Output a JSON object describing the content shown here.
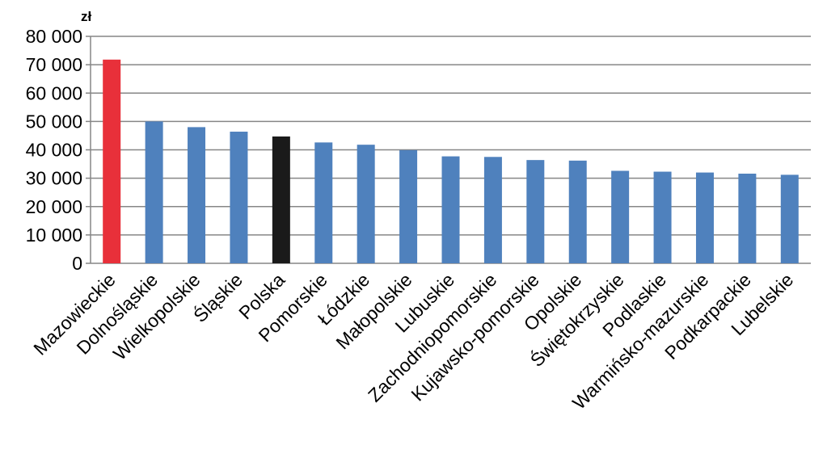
{
  "chart_data": {
    "type": "bar",
    "unit_label": "zł",
    "categories": [
      "Mazowieckie",
      "Dolnośląskie",
      "Wielkopolskie",
      "Śląskie",
      "Polska",
      "Pomorskie",
      "Łódzkie",
      "Małopolskie",
      "Lubuskie",
      "Zachodniopomorskie",
      "Kujawsko-pomorskie",
      "Opolskie",
      "Świętokrzyskie",
      "Podlaskie",
      "Warmińsko-mazurskie",
      "Podkarpackie",
      "Lubelskie"
    ],
    "values": [
      71800,
      50000,
      48000,
      46400,
      44700,
      42600,
      41800,
      39900,
      37700,
      37500,
      36400,
      36200,
      32600,
      32300,
      32000,
      31600,
      31200
    ],
    "bar_colors": [
      "#e8303a",
      "#4f81bd",
      "#4f81bd",
      "#4f81bd",
      "#1a1a1a",
      "#4f81bd",
      "#4f81bd",
      "#4f81bd",
      "#4f81bd",
      "#4f81bd",
      "#4f81bd",
      "#4f81bd",
      "#4f81bd",
      "#4f81bd",
      "#4f81bd",
      "#4f81bd",
      "#4f81bd"
    ],
    "ylim": [
      0,
      80000
    ],
    "yticks": [
      0,
      10000,
      20000,
      30000,
      40000,
      50000,
      60000,
      70000,
      80000
    ],
    "ytick_labels": [
      "0",
      "10 000",
      "20 000",
      "30 000",
      "40 000",
      "50 000",
      "60 000",
      "70 000",
      "80 000"
    ],
    "grid": true,
    "gridline_color": "#868686"
  }
}
